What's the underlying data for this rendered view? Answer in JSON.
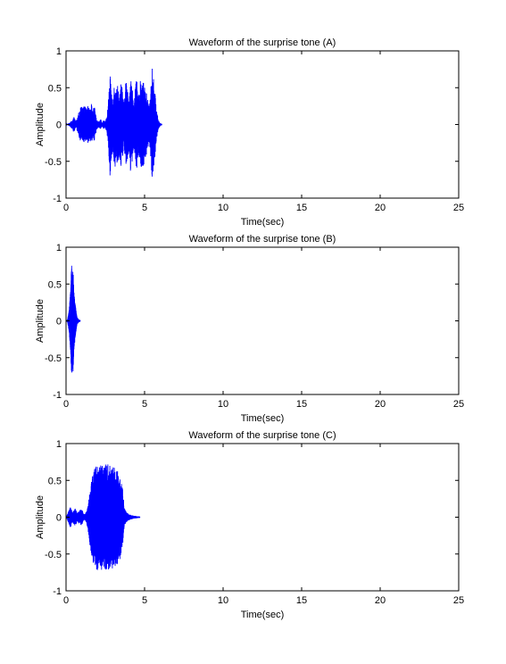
{
  "figure": {
    "background": "#ffffff",
    "axes_color": "#000000",
    "line_color": "#0000ff"
  },
  "chart_data": [
    {
      "type": "line",
      "title": "Waveform of the surprise tone (A)",
      "xlabel": "Time(sec)",
      "ylabel": "Amplitude",
      "xlim": [
        0,
        25
      ],
      "ylim": [
        -1,
        1
      ],
      "xticks": [
        0,
        5,
        10,
        15,
        20,
        25
      ],
      "yticks": [
        -1,
        -0.5,
        0,
        0.5,
        1
      ],
      "ytick_labels": [
        "-1",
        "-0.5",
        "0",
        "0.5",
        "1"
      ],
      "grid": false,
      "series": [
        {
          "color": "#0000ff",
          "signal_end": 6.1,
          "envelope": [
            [
              0.0,
              0.0
            ],
            [
              0.2,
              0.02
            ],
            [
              0.4,
              0.06
            ],
            [
              0.5,
              0.12
            ],
            [
              0.6,
              0.05
            ],
            [
              0.7,
              0.08
            ],
            [
              0.8,
              0.16
            ],
            [
              0.9,
              0.22
            ],
            [
              1.0,
              0.26
            ],
            [
              1.1,
              0.24
            ],
            [
              1.2,
              0.25
            ],
            [
              1.3,
              0.22
            ],
            [
              1.4,
              0.28
            ],
            [
              1.5,
              0.2
            ],
            [
              1.6,
              0.3
            ],
            [
              1.7,
              0.18
            ],
            [
              1.8,
              0.26
            ],
            [
              1.9,
              0.12
            ],
            [
              2.0,
              0.05
            ],
            [
              2.1,
              0.04
            ],
            [
              2.2,
              0.08
            ],
            [
              2.3,
              0.03
            ],
            [
              2.4,
              0.06
            ],
            [
              2.5,
              0.05
            ],
            [
              2.6,
              0.1
            ],
            [
              2.7,
              0.35
            ],
            [
              2.8,
              0.7
            ],
            [
              2.9,
              0.45
            ],
            [
              3.0,
              0.4
            ],
            [
              3.1,
              0.62
            ],
            [
              3.2,
              0.5
            ],
            [
              3.3,
              0.55
            ],
            [
              3.4,
              0.4
            ],
            [
              3.5,
              0.62
            ],
            [
              3.6,
              0.45
            ],
            [
              3.7,
              0.3
            ],
            [
              3.8,
              0.64
            ],
            [
              3.9,
              0.5
            ],
            [
              4.0,
              0.35
            ],
            [
              4.1,
              0.67
            ],
            [
              4.2,
              0.55
            ],
            [
              4.3,
              0.3
            ],
            [
              4.4,
              0.5
            ],
            [
              4.5,
              0.62
            ],
            [
              4.6,
              0.35
            ],
            [
              4.7,
              0.55
            ],
            [
              4.8,
              0.68
            ],
            [
              4.9,
              0.6
            ],
            [
              5.0,
              0.5
            ],
            [
              5.1,
              0.45
            ],
            [
              5.2,
              0.35
            ],
            [
              5.3,
              0.25
            ],
            [
              5.4,
              0.5
            ],
            [
              5.5,
              0.8
            ],
            [
              5.6,
              0.6
            ],
            [
              5.7,
              0.35
            ],
            [
              5.8,
              0.15
            ],
            [
              5.9,
              0.05
            ],
            [
              6.0,
              0.02
            ],
            [
              6.1,
              0.01
            ]
          ]
        }
      ]
    },
    {
      "type": "line",
      "title": "Waveform of the surprise tone (B)",
      "xlabel": "Time(sec)",
      "ylabel": "Amplitude",
      "xlim": [
        0,
        25
      ],
      "ylim": [
        -1,
        1
      ],
      "xticks": [
        0,
        5,
        10,
        15,
        20,
        25
      ],
      "yticks": [
        -1,
        -0.5,
        0,
        0.5,
        1
      ],
      "ytick_labels": [
        "-1",
        "-0.5",
        "0",
        "0.5",
        "1"
      ],
      "grid": false,
      "series": [
        {
          "color": "#0000ff",
          "signal_end": 0.9,
          "envelope": [
            [
              0.0,
              0.0
            ],
            [
              0.1,
              0.02
            ],
            [
              0.2,
              0.15
            ],
            [
              0.3,
              0.45
            ],
            [
              0.35,
              0.78
            ],
            [
              0.4,
              0.6
            ],
            [
              0.45,
              0.7
            ],
            [
              0.5,
              0.4
            ],
            [
              0.55,
              0.3
            ],
            [
              0.6,
              0.2
            ],
            [
              0.7,
              0.05
            ],
            [
              0.8,
              0.02
            ],
            [
              0.9,
              0.01
            ]
          ]
        }
      ]
    },
    {
      "type": "line",
      "title": "Waveform of the surprise tone (C)",
      "xlabel": "Time(sec)",
      "ylabel": "Amplitude",
      "xlim": [
        0,
        25
      ],
      "ylim": [
        -1,
        1
      ],
      "xticks": [
        0,
        5,
        10,
        15,
        20,
        25
      ],
      "yticks": [
        -1,
        -0.5,
        0,
        0.5,
        1
      ],
      "ytick_labels": [
        "-1",
        "-0.5",
        "0",
        "0.5",
        "1"
      ],
      "grid": false,
      "series": [
        {
          "color": "#0000ff",
          "signal_end": 4.7,
          "envelope": [
            [
              0.0,
              0.0
            ],
            [
              0.1,
              0.05
            ],
            [
              0.2,
              0.1
            ],
            [
              0.3,
              0.15
            ],
            [
              0.4,
              0.08
            ],
            [
              0.5,
              0.1
            ],
            [
              0.6,
              0.12
            ],
            [
              0.7,
              0.06
            ],
            [
              0.8,
              0.08
            ],
            [
              0.9,
              0.1
            ],
            [
              1.0,
              0.12
            ],
            [
              1.1,
              0.05
            ],
            [
              1.2,
              0.04
            ],
            [
              1.3,
              0.08
            ],
            [
              1.4,
              0.18
            ],
            [
              1.5,
              0.35
            ],
            [
              1.6,
              0.5
            ],
            [
              1.7,
              0.6
            ],
            [
              1.8,
              0.68
            ],
            [
              1.9,
              0.7
            ],
            [
              2.0,
              0.72
            ],
            [
              2.2,
              0.72
            ],
            [
              2.4,
              0.72
            ],
            [
              2.6,
              0.72
            ],
            [
              2.8,
              0.72
            ],
            [
              3.0,
              0.7
            ],
            [
              3.2,
              0.66
            ],
            [
              3.4,
              0.6
            ],
            [
              3.6,
              0.4
            ],
            [
              3.7,
              0.15
            ],
            [
              3.8,
              0.08
            ],
            [
              4.0,
              0.04
            ],
            [
              4.3,
              0.02
            ],
            [
              4.7,
              0.01
            ]
          ]
        }
      ]
    }
  ]
}
